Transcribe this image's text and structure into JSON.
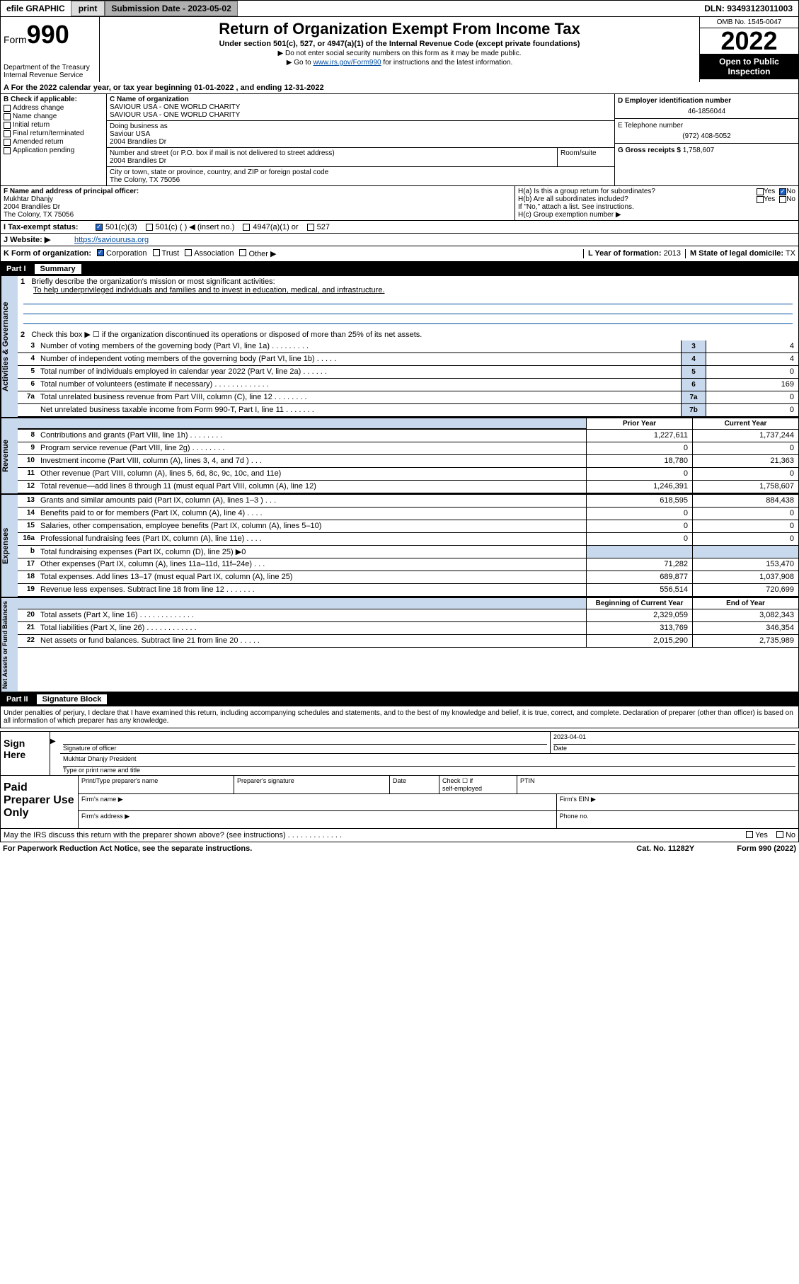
{
  "topbar": {
    "efile_label": "efile GRAPHIC",
    "print_btn": "print",
    "submission_label": "Submission Date - 2023-05-02",
    "dln": "DLN: 93493123011003"
  },
  "header": {
    "form_label": "Form",
    "form_number": "990",
    "dept": "Department of the Treasury\nInternal Revenue Service",
    "title": "Return of Organization Exempt From Income Tax",
    "subtitle": "Under section 501(c), 527, or 4947(a)(1) of the Internal Revenue Code (except private foundations)",
    "note1": "▶ Do not enter social security numbers on this form as it may be made public.",
    "note2_pre": "▶ Go to ",
    "note2_link": "www.irs.gov/Form990",
    "note2_post": " for instructions and the latest information.",
    "omb": "OMB No. 1545-0047",
    "year": "2022",
    "open_public": "Open to Public Inspection"
  },
  "row_a": {
    "text": "A For the 2022 calendar year, or tax year beginning 01-01-2022    , and ending 12-31-2022"
  },
  "section_b": {
    "header": "B Check if applicable:",
    "items": [
      "Address change",
      "Name change",
      "Initial return",
      "Final return/terminated",
      "Amended return",
      "Application pending"
    ]
  },
  "section_c": {
    "name_label": "C Name of organization",
    "name1": "SAVIOUR USA - ONE WORLD CHARITY",
    "name2": "SAVIOUR USA - ONE WORLD CHARITY",
    "dba_label": "Doing business as",
    "dba": "Saviour USA",
    "dba_addr": "2004 Brandiles Dr",
    "street_label": "Number and street (or P.O. box if mail is not delivered to street address)",
    "street": "2004 Brandiles Dr",
    "room_label": "Room/suite",
    "city_label": "City or town, state or province, country, and ZIP or foreign postal code",
    "city": "The Colony, TX  75056"
  },
  "section_d": {
    "label": "D Employer identification number",
    "ein": "46-1856044"
  },
  "section_e": {
    "label": "E Telephone number",
    "phone": "(972) 408-5052"
  },
  "section_g": {
    "label": "G Gross receipts $",
    "amount": "1,758,607"
  },
  "section_f": {
    "label": "F Name and address of principal officer:",
    "name": "Mukhtar Dhanjy",
    "addr1": "2004 Brandiles Dr",
    "addr2": "The Colony, TX  75056"
  },
  "section_h": {
    "ha": "H(a)  Is this a group return for subordinates?",
    "hb": "H(b)  Are all subordinates included?",
    "hb_note": "If \"No,\" attach a list. See instructions.",
    "hc": "H(c)  Group exemption number ▶",
    "yes": "Yes",
    "no": "No"
  },
  "section_i": {
    "label": "I   Tax-exempt status:",
    "opt1": "501(c)(3)",
    "opt2": "501(c) (    ) ◀ (insert no.)",
    "opt3": "4947(a)(1) or",
    "opt4": "527"
  },
  "section_j": {
    "label": "J   Website: ▶",
    "url": "https://saviourusa.org"
  },
  "section_k": {
    "label": "K Form of organization:",
    "opts": [
      "Corporation",
      "Trust",
      "Association",
      "Other ▶"
    ],
    "l_label": "L Year of formation:",
    "l_val": "2013",
    "m_label": "M State of legal domicile:",
    "m_val": "TX"
  },
  "part1": {
    "label": "Part I",
    "title": "Summary"
  },
  "governance": {
    "side": "Activities & Governance",
    "l1_label": "Briefly describe the organization's mission or most significant activities:",
    "l1_text": "To help underprivileged individuals and families and to invest in education, medical, and infrastructure.",
    "l2": "Check this box ▶ ☐  if the organization discontinued its operations or disposed of more than 25% of its net assets.",
    "rows": [
      {
        "n": "3",
        "t": "Number of voting members of the governing body (Part VI, line 1a)  .    .    .    .    .    .    .    .    .",
        "box": "3",
        "v": "4"
      },
      {
        "n": "4",
        "t": "Number of independent voting members of the governing body (Part VI, line 1b)  .    .    .    .    .",
        "box": "4",
        "v": "4"
      },
      {
        "n": "5",
        "t": "Total number of individuals employed in calendar year 2022 (Part V, line 2a)  .    .    .    .    .    .",
        "box": "5",
        "v": "0"
      },
      {
        "n": "6",
        "t": "Total number of volunteers (estimate if necessary)  .    .    .    .    .    .    .    .    .    .    .    .    .",
        "box": "6",
        "v": "169"
      },
      {
        "n": "7a",
        "t": "Total unrelated business revenue from Part VIII, column (C), line 12  .    .    .    .    .    .    .    .",
        "box": "7a",
        "v": "0"
      },
      {
        "n": "",
        "t": "Net unrelated business taxable income from Form 990-T, Part I, line 11  .    .    .    .    .    .    .",
        "box": "7b",
        "v": "0"
      }
    ]
  },
  "revenue": {
    "side": "Revenue",
    "prior_hdr": "Prior Year",
    "current_hdr": "Current Year",
    "rows": [
      {
        "n": "8",
        "t": "Contributions and grants (Part VIII, line 1h)  .    .    .    .    .    .    .    .",
        "p": "1,227,611",
        "c": "1,737,244"
      },
      {
        "n": "9",
        "t": "Program service revenue (Part VIII, line 2g)  .    .    .    .    .    .    .    .",
        "p": "0",
        "c": "0"
      },
      {
        "n": "10",
        "t": "Investment income (Part VIII, column (A), lines 3, 4, and 7d )  .    .    .",
        "p": "18,780",
        "c": "21,363"
      },
      {
        "n": "11",
        "t": "Other revenue (Part VIII, column (A), lines 5, 6d, 8c, 9c, 10c, and 11e)",
        "p": "0",
        "c": "0"
      },
      {
        "n": "12",
        "t": "Total revenue—add lines 8 through 11 (must equal Part VIII, column (A), line 12)",
        "p": "1,246,391",
        "c": "1,758,607"
      }
    ]
  },
  "expenses": {
    "side": "Expenses",
    "rows": [
      {
        "n": "13",
        "t": "Grants and similar amounts paid (Part IX, column (A), lines 1–3 )  .    .    .",
        "p": "618,595",
        "c": "884,438"
      },
      {
        "n": "14",
        "t": "Benefits paid to or for members (Part IX, column (A), line 4)  .    .    .    .",
        "p": "0",
        "c": "0"
      },
      {
        "n": "15",
        "t": "Salaries, other compensation, employee benefits (Part IX, column (A), lines 5–10)",
        "p": "0",
        "c": "0"
      },
      {
        "n": "16a",
        "t": "Professional fundraising fees (Part IX, column (A), line 11e)  .    .    .    .",
        "p": "0",
        "c": "0"
      },
      {
        "n": "b",
        "t": "Total fundraising expenses (Part IX, column (D), line 25) ▶0",
        "p": "",
        "c": "",
        "shaded": true
      },
      {
        "n": "17",
        "t": "Other expenses (Part IX, column (A), lines 11a–11d, 11f–24e)  .    .    .",
        "p": "71,282",
        "c": "153,470"
      },
      {
        "n": "18",
        "t": "Total expenses. Add lines 13–17 (must equal Part IX, column (A), line 25)",
        "p": "689,877",
        "c": "1,037,908"
      },
      {
        "n": "19",
        "t": "Revenue less expenses. Subtract line 18 from line 12  .    .    .    .    .    .    .",
        "p": "556,514",
        "c": "720,699"
      }
    ]
  },
  "netassets": {
    "side": "Net Assets or Fund Balances",
    "prior_hdr": "Beginning of Current Year",
    "current_hdr": "End of Year",
    "rows": [
      {
        "n": "20",
        "t": "Total assets (Part X, line 16)  .    .    .    .    .    .    .    .    .    .    .    .    .",
        "p": "2,329,059",
        "c": "3,082,343"
      },
      {
        "n": "21",
        "t": "Total liabilities (Part X, line 26)  .    .    .    .    .    .    .    .    .    .    .    .",
        "p": "313,769",
        "c": "346,354"
      },
      {
        "n": "22",
        "t": "Net assets or fund balances. Subtract line 21 from line 20  .    .    .    .    .",
        "p": "2,015,290",
        "c": "2,735,989"
      }
    ]
  },
  "part2": {
    "label": "Part II",
    "title": "Signature Block",
    "penalties": "Under penalties of perjury, I declare that I have examined this return, including accompanying schedules and statements, and to the best of my knowledge and belief, it is true, correct, and complete. Declaration of preparer (other than officer) is based on all information of which preparer has any knowledge."
  },
  "sign": {
    "label": "Sign Here",
    "sig_label": "Signature of officer",
    "date_label": "Date",
    "date_val": "2023-04-01",
    "name": "Mukhtar Dhanjy  President",
    "name_label": "Type or print name and title"
  },
  "paid": {
    "label": "Paid Preparer Use Only",
    "col1": "Print/Type preparer's name",
    "col2": "Preparer's signature",
    "col3": "Date",
    "col4a": "Check ☐ if",
    "col4b": "self-employed",
    "col5": "PTIN",
    "firm_name": "Firm's name    ▶",
    "firm_ein": "Firm's EIN ▶",
    "firm_addr": "Firm's address ▶",
    "phone": "Phone no."
  },
  "footer": {
    "discuss": "May the IRS discuss this return with the preparer shown above? (see instructions)   .    .    .    .    .    .    .    .    .    .    .    .    .",
    "yes": "Yes",
    "no": "No",
    "paperwork": "For Paperwork Reduction Act Notice, see the separate instructions.",
    "cat": "Cat. No. 11282Y",
    "form": "Form 990 (2022)"
  }
}
